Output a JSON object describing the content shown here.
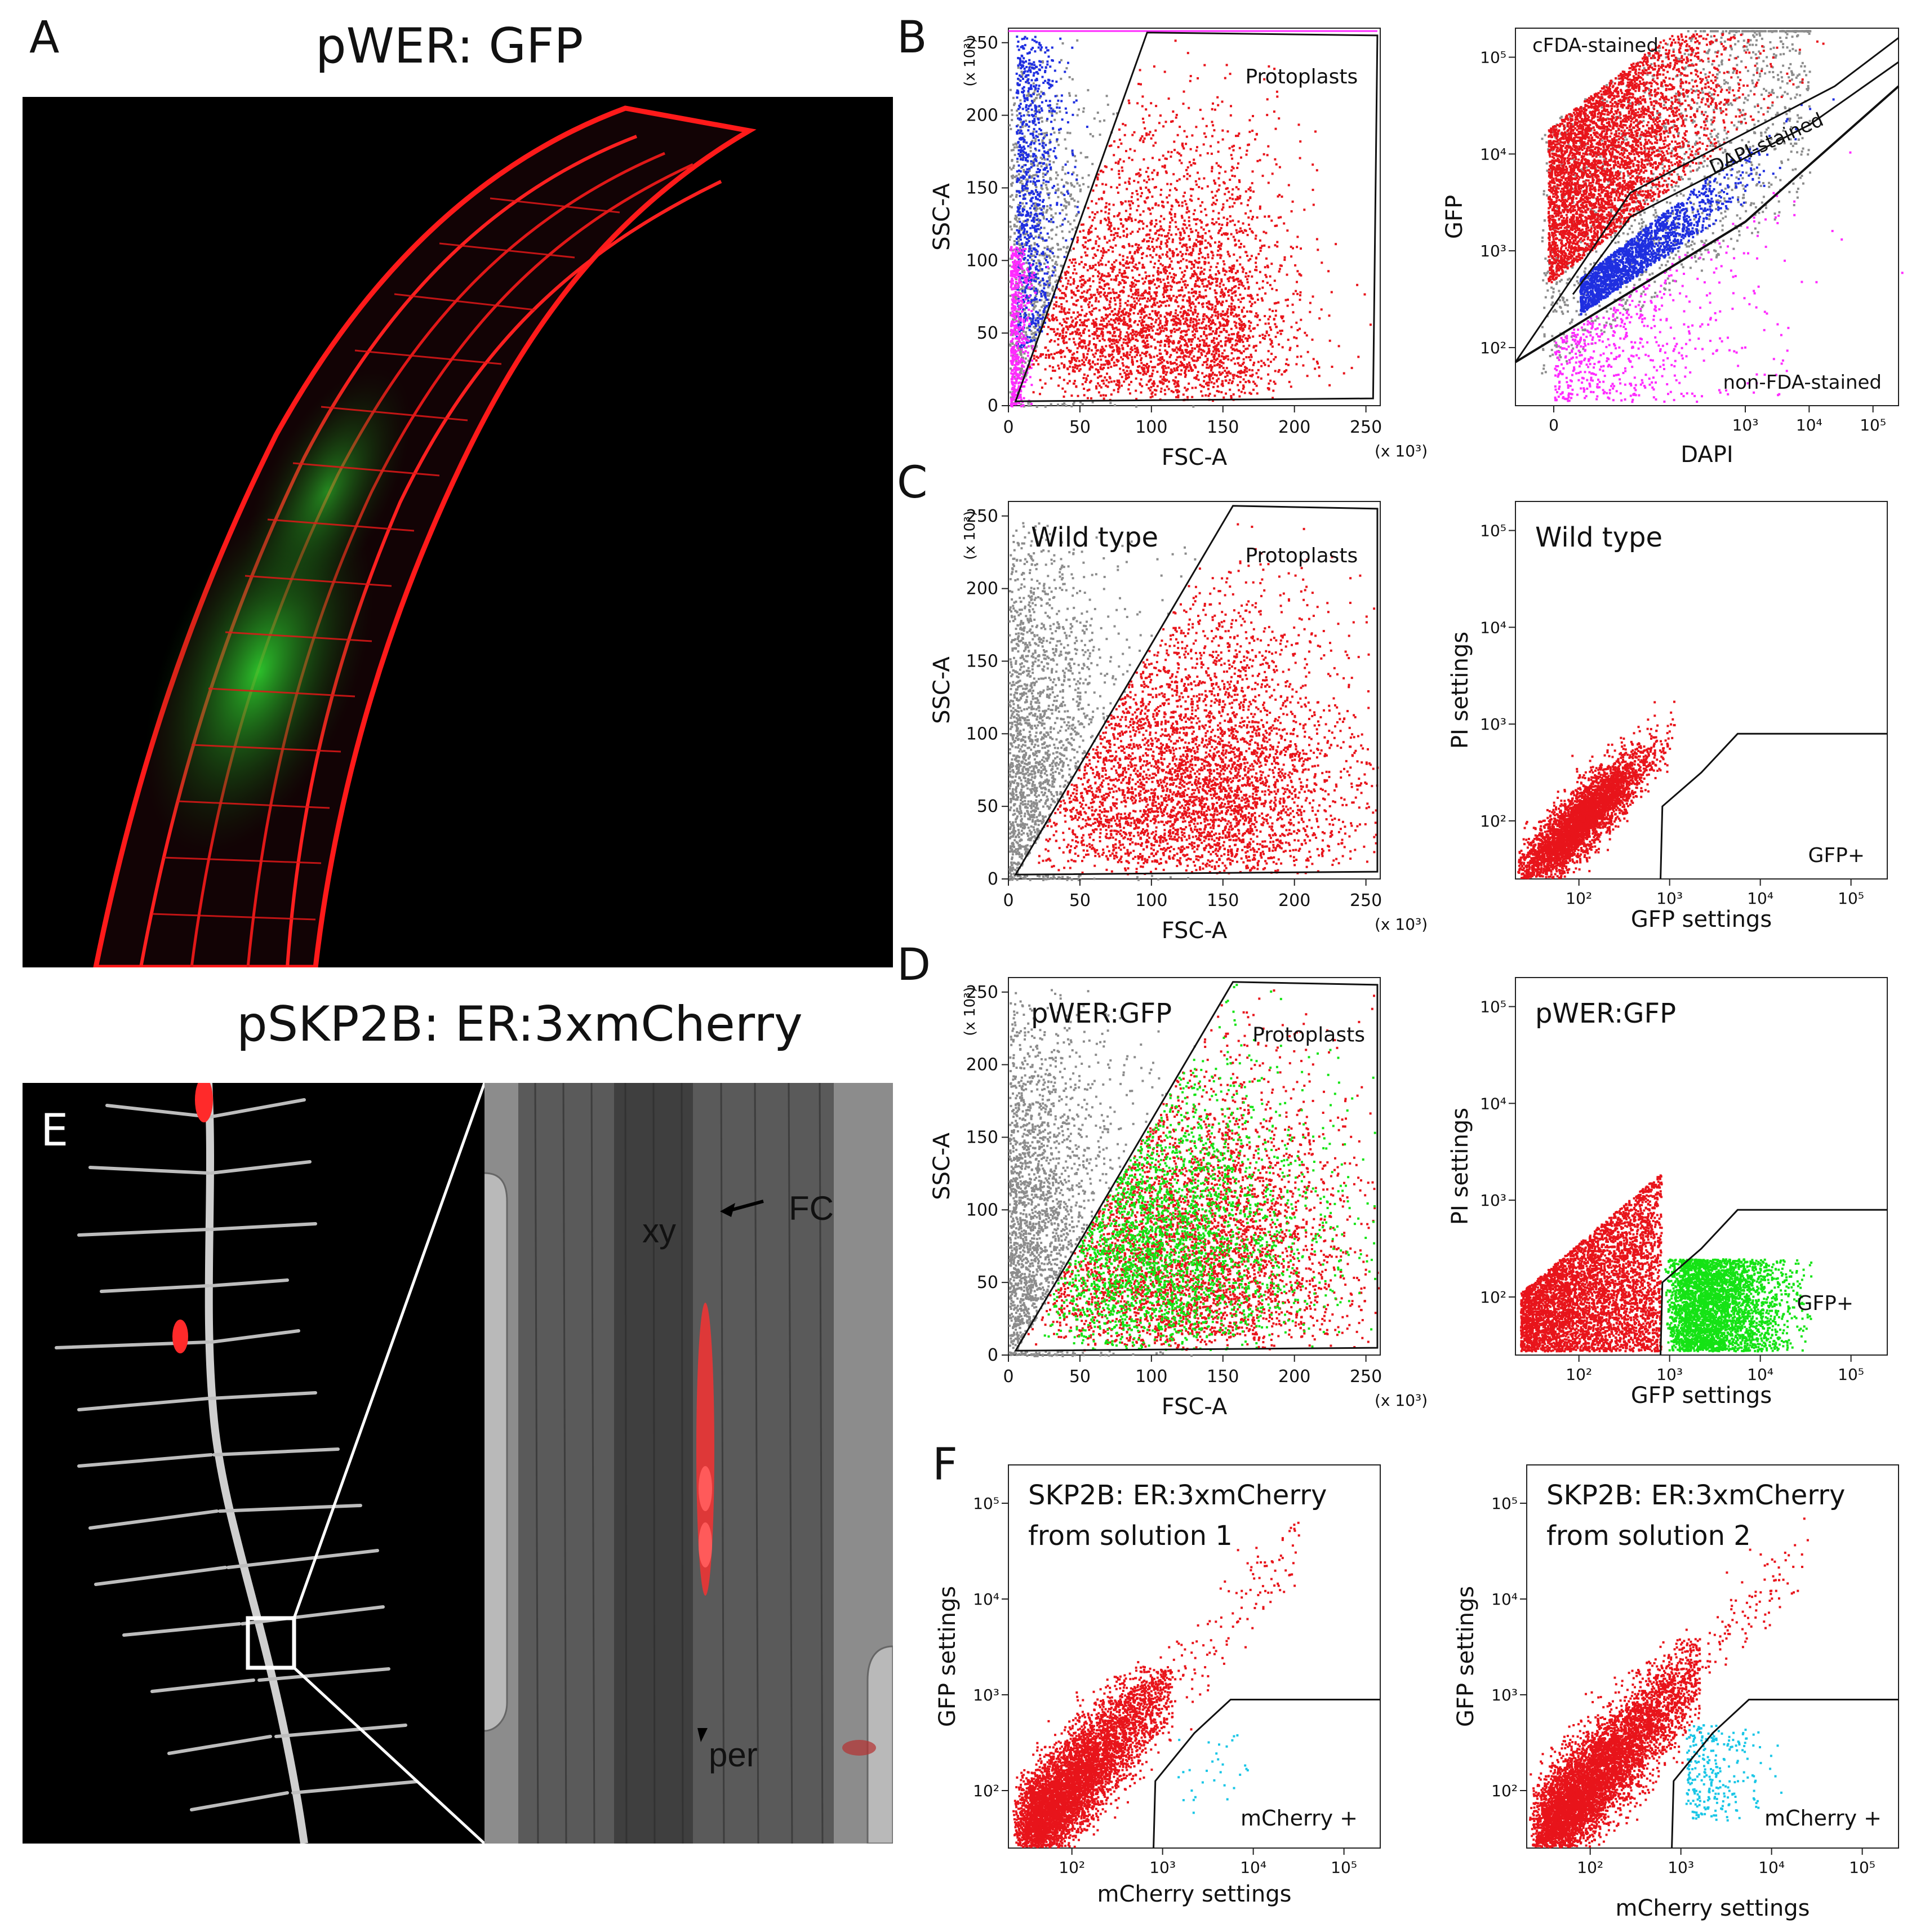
{
  "panelA": {
    "letter": "A",
    "title": "pWER: GFP"
  },
  "panelB": {
    "letter": "B"
  },
  "panelC": {
    "letter": "C"
  },
  "panelD": {
    "letter": "D"
  },
  "panelE": {
    "letter": "E",
    "title": "pSKP2B: ER:3xmCherry",
    "labels": {
      "xy": "xy",
      "fc": "FC",
      "per": "per"
    }
  },
  "panelF": {
    "letter": "F"
  },
  "colors": {
    "gated_red": "#e8141b",
    "gray": "#8c8c8c",
    "blue": "#1f2fe0",
    "magenta": "#ff2bff",
    "green": "#15e315",
    "cyan": "#19c6e6"
  },
  "chart_data": [
    {
      "id": "B-left",
      "type": "scatter",
      "panel": "B",
      "xlabel": "FSC-A",
      "ylabel": "SSC-A",
      "x_multiplier": "(x 10³)",
      "y_multiplier": "(x 10³)",
      "x_ticks": [
        "0",
        "50",
        "100",
        "150",
        "200",
        "250"
      ],
      "y_ticks": [
        "0",
        "50",
        "100",
        "150",
        "200",
        "250"
      ],
      "xlim": [
        0,
        260
      ],
      "ylim": [
        0,
        260
      ],
      "scale": "linear",
      "gate_label": "Protoplasts",
      "gate": [
        [
          5,
          3
        ],
        [
          97,
          257
        ],
        [
          258,
          255
        ],
        [
          255,
          5
        ]
      ],
      "series": [
        {
          "name": "gray",
          "color": "gray",
          "approx_points": [
            [
              20,
              180
            ],
            [
              30,
              220
            ],
            [
              40,
              150
            ]
          ]
        },
        {
          "name": "blue",
          "color": "blue",
          "approx_points": [
            [
              20,
              200
            ],
            [
              25,
              150
            ],
            [
              30,
              120
            ]
          ]
        },
        {
          "name": "magenta",
          "color": "magenta",
          "approx_points": [
            [
              5,
              40
            ],
            [
              10,
              60
            ]
          ]
        },
        {
          "name": "Protoplasts",
          "color": "gated_red",
          "approx_points": [
            [
              40,
              40
            ],
            [
              60,
              30
            ],
            [
              100,
              20
            ]
          ]
        }
      ]
    },
    {
      "id": "B-right",
      "type": "scatter",
      "panel": "B",
      "xlabel": "DAPI",
      "ylabel": "GFP",
      "x_ticks": [
        "0",
        "10³",
        "10⁴",
        "10⁵"
      ],
      "y_ticks": [
        "10²",
        "10³",
        "10⁴",
        "10⁵"
      ],
      "scale": "log",
      "gate_labels": [
        "cFDA-stained",
        "DAPI-stained",
        "non-FDA-stained"
      ],
      "series": [
        {
          "name": "cFDA-stained",
          "color": "gated_red"
        },
        {
          "name": "DAPI-stained",
          "color": "blue"
        },
        {
          "name": "non-FDA-stained",
          "color": "magenta"
        },
        {
          "name": "ungated",
          "color": "gray"
        }
      ]
    },
    {
      "id": "C-left",
      "type": "scatter",
      "panel": "C",
      "inner_label": "Wild type",
      "xlabel": "FSC-A",
      "ylabel": "SSC-A",
      "x_multiplier": "(x 10³)",
      "y_multiplier": "(x 10³)",
      "x_ticks": [
        "0",
        "50",
        "100",
        "150",
        "200",
        "250"
      ],
      "y_ticks": [
        "0",
        "50",
        "100",
        "150",
        "200",
        "250"
      ],
      "xlim": [
        0,
        260
      ],
      "ylim": [
        0,
        260
      ],
      "scale": "linear",
      "gate_label": "Protoplasts",
      "gate": [
        [
          5,
          3
        ],
        [
          157,
          257
        ],
        [
          258,
          255
        ],
        [
          258,
          5
        ]
      ],
      "series": [
        {
          "name": "ungated",
          "color": "gray"
        },
        {
          "name": "Protoplasts",
          "color": "gated_red"
        }
      ]
    },
    {
      "id": "C-right",
      "type": "scatter",
      "panel": "C",
      "inner_label": "Wild type",
      "xlabel": "GFP settings",
      "ylabel": "PI settings",
      "x_ticks": [
        "10²",
        "10³",
        "10⁴",
        "10⁵"
      ],
      "y_ticks": [
        "10²",
        "10³",
        "10⁴",
        "10⁵"
      ],
      "scale": "log",
      "gate_label": "GFP+",
      "series": [
        {
          "name": "all events",
          "color": "gated_red"
        }
      ]
    },
    {
      "id": "D-left",
      "type": "scatter",
      "panel": "D",
      "inner_label": "pWER:GFP",
      "xlabel": "FSC-A",
      "ylabel": "SSC-A",
      "x_multiplier": "(x 10³)",
      "y_multiplier": "(x 10³)",
      "x_ticks": [
        "0",
        "50",
        "100",
        "150",
        "200",
        "250"
      ],
      "y_ticks": [
        "0",
        "50",
        "100",
        "150",
        "200",
        "250"
      ],
      "xlim": [
        0,
        260
      ],
      "ylim": [
        0,
        260
      ],
      "scale": "linear",
      "gate_label": "Protoplasts",
      "gate": [
        [
          5,
          3
        ],
        [
          157,
          257
        ],
        [
          258,
          255
        ],
        [
          258,
          5
        ]
      ],
      "series": [
        {
          "name": "ungated",
          "color": "gray"
        },
        {
          "name": "Protoplasts",
          "color": "gated_red"
        },
        {
          "name": "GFP+",
          "color": "green"
        }
      ]
    },
    {
      "id": "D-right",
      "type": "scatter",
      "panel": "D",
      "inner_label": "pWER:GFP",
      "xlabel": "GFP settings",
      "ylabel": "PI settings",
      "x_ticks": [
        "10²",
        "10³",
        "10⁴",
        "10⁵"
      ],
      "y_ticks": [
        "10²",
        "10³",
        "10⁴",
        "10⁵"
      ],
      "scale": "log",
      "gate_label": "GFP+",
      "series": [
        {
          "name": "GFP-",
          "color": "gated_red"
        },
        {
          "name": "GFP+",
          "color": "green"
        }
      ]
    },
    {
      "id": "F-left",
      "type": "scatter",
      "panel": "F",
      "inner_label_1": "SKP2B: ER:3xmCherry",
      "inner_label_2": "from solution 1",
      "xlabel": "mCherry settings",
      "ylabel": "GFP settings",
      "x_ticks": [
        "10²",
        "10³",
        "10⁴",
        "10⁵"
      ],
      "y_ticks": [
        "10²",
        "10³",
        "10⁴",
        "10⁵"
      ],
      "scale": "log",
      "gate_label": "mCherry +",
      "series": [
        {
          "name": "mCherry-",
          "color": "gated_red"
        },
        {
          "name": "mCherry+",
          "color": "cyan"
        }
      ]
    },
    {
      "id": "F-right",
      "type": "scatter",
      "panel": "F",
      "inner_label_1": "SKP2B: ER:3xmCherry",
      "inner_label_2": "from solution 2",
      "xlabel": "mCherry settings",
      "ylabel": "GFP settings",
      "x_ticks": [
        "10²",
        "10³",
        "10⁴",
        "10⁵"
      ],
      "y_ticks": [
        "10²",
        "10³",
        "10⁴",
        "10⁵"
      ],
      "scale": "log",
      "gate_label": "mCherry +",
      "series": [
        {
          "name": "mCherry-",
          "color": "gated_red"
        },
        {
          "name": "mCherry+",
          "color": "cyan"
        }
      ]
    }
  ]
}
